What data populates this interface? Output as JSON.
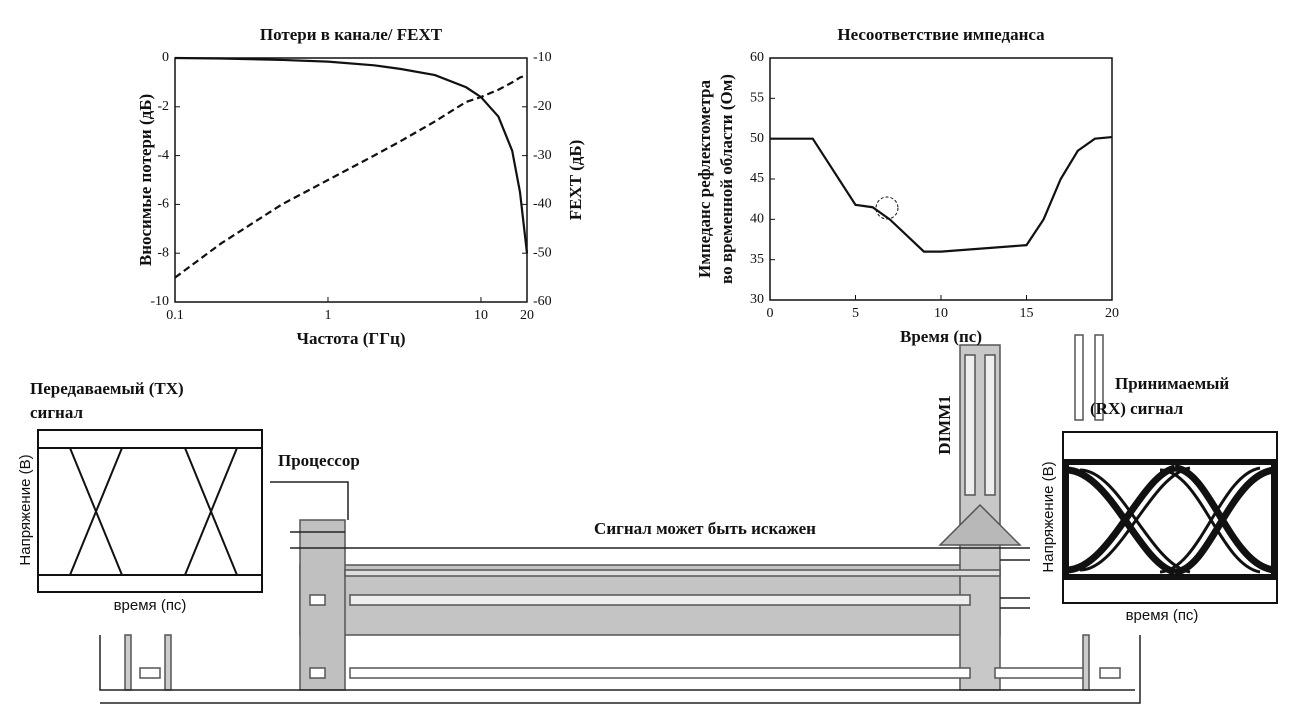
{
  "chart_data": [
    {
      "type": "line",
      "title": "Потери в канале/ FEXT",
      "xlabel": "Частота (ГГц)",
      "ylabel": "Вносимые потери (дБ)",
      "y2label": "FEXT (дБ)",
      "xscale": "log",
      "x": [
        0.1,
        0.2,
        0.5,
        1,
        2,
        3,
        5,
        8,
        10,
        13,
        16,
        18,
        20
      ],
      "series": [
        {
          "color": "#111111",
          "dash": false,
          "values": [
            0,
            -0.02,
            -0.08,
            -0.15,
            -0.3,
            -0.45,
            -0.7,
            -1.2,
            -1.6,
            -2.4,
            -3.8,
            -5.5,
            -8
          ]
        },
        {
          "color": "#111111",
          "dash": true,
          "axis": "y2",
          "values": [
            -55,
            -48,
            -40,
            -35,
            -30,
            -27,
            -23,
            -19,
            -18,
            -16.5,
            -15,
            -14,
            -13.5
          ]
        }
      ],
      "xlim": [
        0.1,
        20
      ],
      "xticks": [
        0.1,
        1,
        10,
        20
      ],
      "ylim": [
        -10,
        0
      ],
      "yticks": [
        0,
        -2,
        -4,
        -6,
        -8,
        -10
      ],
      "y2lim": [
        -60,
        -10
      ],
      "y2ticks": [
        -10,
        -20,
        -30,
        -40,
        -50,
        -60
      ]
    },
    {
      "type": "line",
      "title": "Несоответствие импеданса",
      "xlabel": "Время (пс)",
      "ylabel": [
        "Импеданс рефлектометра",
        "во временной области (Ом)"
      ],
      "x": [
        0,
        2.5,
        5,
        6,
        7,
        9,
        10,
        15,
        16,
        17,
        18,
        19,
        20
      ],
      "series": [
        {
          "color": "#111111",
          "dash": false,
          "values": [
            50,
            50,
            41.8,
            41.5,
            40,
            36,
            36,
            36.8,
            40,
            45,
            48.5,
            50,
            50.2
          ]
        }
      ],
      "xlim": [
        0,
        20
      ],
      "xticks": [
        0,
        5,
        10,
        15,
        20
      ],
      "ylim": [
        30,
        60
      ],
      "yticks": [
        30,
        35,
        40,
        45,
        50,
        55,
        60
      ]
    }
  ],
  "diagram": {
    "tx_title": [
      "Передаваемый (TX)",
      "сигнал"
    ],
    "tx_ylabel": "Напряжение (В)",
    "tx_xlabel": "время (пс)",
    "processor": "Процессор",
    "distortion": "Сигнал может быть искажен",
    "dimm": "DIMM1",
    "rx_title": [
      "Принимаемый",
      "(RX) сигнал"
    ],
    "rx_ylabel": "Напряжение (В)",
    "rx_xlabel": "время (пс)"
  }
}
